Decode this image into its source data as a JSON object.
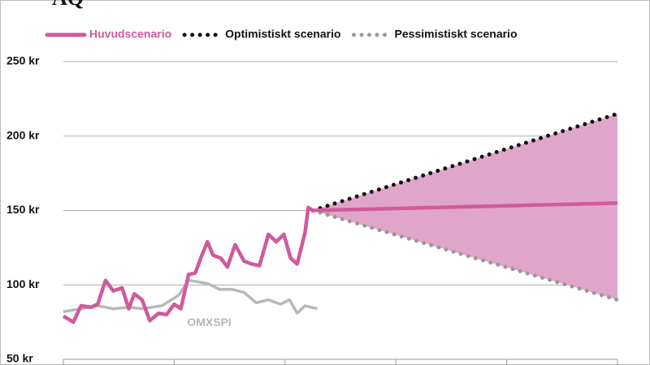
{
  "chart_data": {
    "type": "line",
    "title": "AQ",
    "xlim": [
      0,
      500
    ],
    "xticks": [
      0,
      100,
      200,
      300,
      400,
      500
    ],
    "ylim": [
      50,
      250
    ],
    "yticks": [
      {
        "value": 50,
        "label": "50 kr"
      },
      {
        "value": 100,
        "label": "100 kr"
      },
      {
        "value": 150,
        "label": "150 kr"
      },
      {
        "value": 200,
        "label": "200 kr"
      },
      {
        "value": 250,
        "label": "250 kr"
      }
    ],
    "grid": true,
    "band_color": "#e0a6c9",
    "series": [
      {
        "name": "Huvudscenario",
        "color": "#cf5a9c",
        "line_style": "solid",
        "legend": true,
        "x": [
          0,
          9,
          16,
          25,
          31,
          38,
          45,
          53,
          59,
          64,
          71,
          78,
          86,
          93,
          100,
          106,
          113,
          119,
          125,
          130,
          135,
          142,
          148,
          155,
          163,
          170,
          177,
          185,
          192,
          199,
          205,
          211,
          218,
          221,
          225,
          500
        ],
        "values": [
          79,
          75,
          86,
          85,
          87,
          103,
          96,
          98,
          84,
          94,
          90,
          76,
          81,
          80,
          87,
          84,
          107,
          108,
          120,
          129,
          120,
          118,
          112,
          127,
          116,
          114,
          113,
          134,
          129,
          134,
          118,
          114,
          135,
          152,
          150,
          155
        ]
      },
      {
        "name": "Optimistiskt scenario",
        "color": "#111111",
        "line_style": "dotted",
        "legend": true,
        "x": [
          225,
          500
        ],
        "values": [
          150,
          215
        ]
      },
      {
        "name": "Pessimistiskt scenario",
        "color": "#999999",
        "line_style": "dotted",
        "legend": true,
        "x": [
          225,
          500
        ],
        "values": [
          150,
          90
        ]
      },
      {
        "name": "OMXSPI",
        "color": "#b8b8b8",
        "line_style": "solid",
        "legend": false,
        "x": [
          0,
          16,
          31,
          45,
          60,
          71,
          89,
          104,
          113,
          122,
          130,
          141,
          152,
          163,
          174,
          185,
          196,
          204,
          211,
          218,
          229
        ],
        "values": [
          82,
          84,
          86,
          84,
          85,
          84,
          86,
          93,
          103,
          102,
          101,
          97,
          97,
          95,
          88,
          90,
          87,
          90,
          81,
          86,
          84
        ]
      }
    ]
  }
}
